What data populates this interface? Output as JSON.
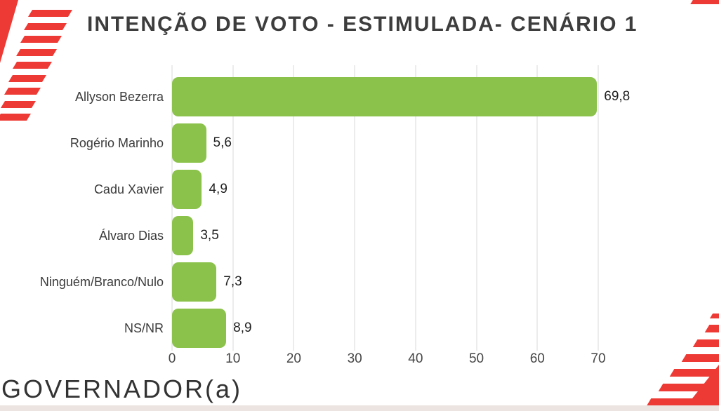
{
  "title": "INTENÇÃO DE VOTO - ESTIMULADA- CENÁRIO 1",
  "footer": {
    "label": "GOVERNADOR(a)"
  },
  "colors": {
    "bar_green": "#8bc24b",
    "accent_red": "#ee3a34",
    "gridline": "#ececec",
    "bottom_strip": "#ebe4e1",
    "title_text": "#3d3d3d",
    "label_text": "#3b3b3b"
  },
  "chart_data": {
    "type": "bar",
    "orientation": "horizontal",
    "title": "INTENÇÃO DE VOTO - ESTIMULADA- CENÁRIO 1",
    "categories": [
      "Allyson Bezerra",
      "Rogério Marinho",
      "Cadu Xavier",
      "Álvaro Dias",
      "Ninguém/Branco/Nulo",
      "NS/NR"
    ],
    "values": [
      69.8,
      5.6,
      4.9,
      3.5,
      7.3,
      8.9
    ],
    "value_labels": [
      "69,8",
      "5,6",
      "4,9",
      "3,5",
      "7,3",
      "8,9"
    ],
    "x_ticks": [
      0,
      10,
      20,
      30,
      40,
      50,
      60,
      70
    ],
    "x_tick_labels": [
      "0",
      "10",
      "20",
      "30",
      "40",
      "50",
      "60",
      "70"
    ],
    "xlim": [
      0,
      70
    ],
    "grid": true,
    "legend": false,
    "xlabel": "",
    "ylabel": ""
  }
}
